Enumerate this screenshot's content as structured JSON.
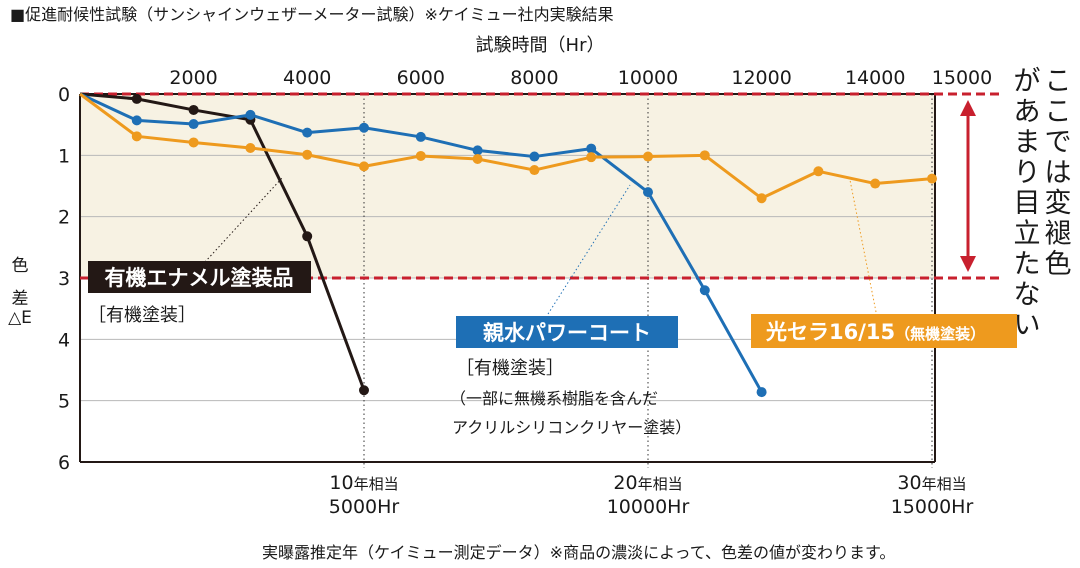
{
  "page": {
    "header_note": "■促進耐候性試験（サンシャインウェザーメーター試験）※ケイミュー社内実験結果",
    "footer_note": "実曝露推定年（ケイミュー測定データ）※商品の濃淡によって、色差の値が変わります。"
  },
  "chart_data": {
    "type": "line",
    "title": "",
    "xlabel": "試験時間（Hr）",
    "ylabel_lines": [
      "色",
      "差",
      "△E"
    ],
    "x_range": [
      0,
      15000
    ],
    "y_range": [
      0,
      6
    ],
    "y_reversed": true,
    "x_ticks": [
      2000,
      4000,
      6000,
      8000,
      10000,
      12000,
      14000,
      15000
    ],
    "y_ticks": [
      0,
      1,
      2,
      3,
      4,
      5,
      6
    ],
    "grid": "horizontal",
    "shaded_band": {
      "y_from": 0,
      "y_to": 3,
      "color": "#f7f2e3"
    },
    "threshold_lines": [
      {
        "y": 0,
        "color": "#c8202e"
      },
      {
        "y": 3,
        "color": "#c8202e"
      }
    ],
    "side_annotation": "ここでは変褪色があまり目立たない",
    "year_markers": [
      {
        "x": 5000,
        "years": "10",
        "year_unit": "年相当",
        "hours": "5000Hr"
      },
      {
        "x": 10000,
        "years": "20",
        "year_unit": "年相当",
        "hours": "10000Hr"
      },
      {
        "x": 15000,
        "years": "30",
        "year_unit": "年相当",
        "hours": "15000Hr"
      }
    ],
    "series": [
      {
        "name": "有機エナメル塗装品",
        "sub": "［有機塗装］",
        "color": "#231815",
        "x": [
          0,
          1000,
          2000,
          3000,
          4000,
          5000
        ],
        "y": [
          0,
          0.08,
          0.26,
          0.42,
          2.32,
          4.83
        ]
      },
      {
        "name": "親水パワーコート",
        "sub": "［有機塗装］",
        "sub2": "（一部に無機系樹脂を含んだ",
        "sub3": "アクリルシリコンクリヤー塗装）",
        "color": "#1e6fb5",
        "x": [
          0,
          1000,
          2000,
          3000,
          4000,
          5000,
          6000,
          7000,
          8000,
          9000,
          10000,
          11000,
          12000
        ],
        "y": [
          0,
          0.43,
          0.49,
          0.34,
          0.63,
          0.55,
          0.7,
          0.92,
          1.02,
          0.89,
          1.6,
          3.2,
          4.86
        ]
      },
      {
        "name": "光セラ16/15",
        "name_suffix": "（無機塗装）",
        "color": "#ee9a1e",
        "x": [
          0,
          1000,
          2000,
          3000,
          4000,
          5000,
          6000,
          7000,
          8000,
          9000,
          10000,
          11000,
          12000,
          13000,
          14000,
          15000
        ],
        "y": [
          0,
          0.69,
          0.79,
          0.88,
          0.99,
          1.18,
          1.01,
          1.06,
          1.24,
          1.03,
          1.02,
          1.0,
          1.7,
          1.26,
          1.46,
          1.38
        ]
      }
    ]
  }
}
